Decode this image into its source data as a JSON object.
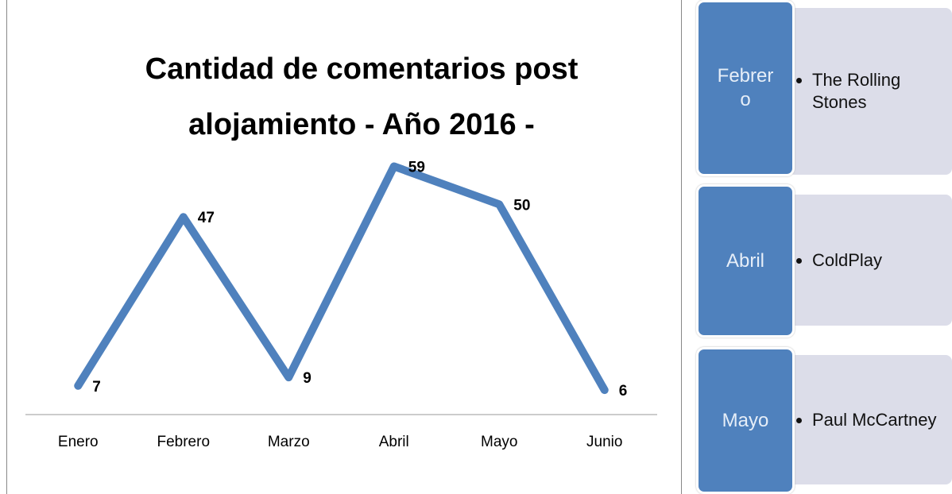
{
  "chart_data": {
    "type": "line",
    "title": "Cantidad de comentarios post alojamiento - Año 2016 -",
    "categories": [
      "Enero",
      "Febrero",
      "Marzo",
      "Abril",
      "Mayo",
      "Junio"
    ],
    "values": [
      7,
      47,
      9,
      59,
      50,
      6
    ],
    "color": "#4f81bd",
    "ylim": [
      0,
      70
    ],
    "data_labels": true
  },
  "items": [
    {
      "label": "Febrero",
      "details": [
        "The Rolling Stones"
      ]
    },
    {
      "label": "Abril",
      "details": [
        "ColdPlay"
      ]
    },
    {
      "label": "Mayo",
      "details": [
        "Paul McCartney"
      ]
    }
  ]
}
